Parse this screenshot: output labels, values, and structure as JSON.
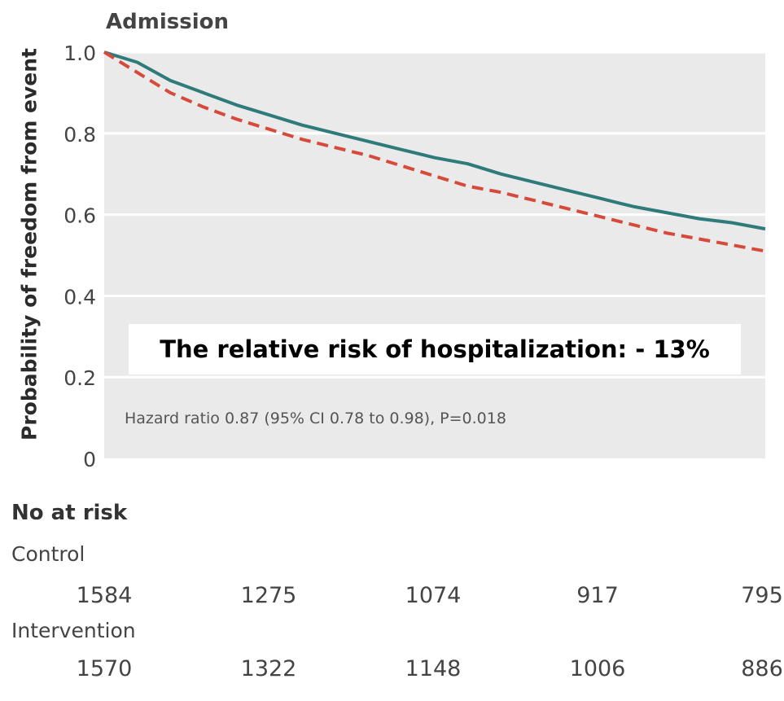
{
  "panel_title": "Admission",
  "annotation": "The relative risk of hospitalization: - 13%",
  "hazard_text": "Hazard ratio 0.87 (95% CI 0.78 to 0.98), P=0.018",
  "at_risk": {
    "header": "No at risk",
    "groups": [
      {
        "label": "Control",
        "counts": [
          "1584",
          "1275",
          "1074",
          "917",
          "795"
        ]
      },
      {
        "label": "Intervention",
        "counts": [
          "1570",
          "1322",
          "1148",
          "1006",
          "886"
        ]
      }
    ]
  },
  "colors": {
    "panel_bg": "#eaeaea",
    "gridline": "#ffffff",
    "solid_series": "#2f7a7a",
    "dashed_series": "#d64a3a"
  },
  "chart_data": {
    "type": "line",
    "title": "Admission",
    "ylabel": "Probability of freedom from event",
    "xlabel": "",
    "ylim": [
      0,
      1.0
    ],
    "yticks": [
      0,
      0.2,
      0.4,
      0.6,
      0.8,
      1.0
    ],
    "ytick_labels": [
      "0",
      "0.2",
      "0.4",
      "0.6",
      "0.8",
      "1.0"
    ],
    "x_unit_note": "follow-up period, 0 to end",
    "xlim": [
      0,
      1
    ],
    "grid": true,
    "series": [
      {
        "style": "solid",
        "color": "#2f7a7a",
        "x": [
          0,
          0.02,
          0.05,
          0.1,
          0.15,
          0.2,
          0.25,
          0.3,
          0.35,
          0.4,
          0.45,
          0.5,
          0.55,
          0.6,
          0.65,
          0.7,
          0.75,
          0.8,
          0.85,
          0.9,
          0.95,
          1.0
        ],
        "y": [
          1.0,
          0.99,
          0.975,
          0.93,
          0.9,
          0.87,
          0.845,
          0.82,
          0.8,
          0.78,
          0.76,
          0.74,
          0.725,
          0.7,
          0.68,
          0.66,
          0.64,
          0.62,
          0.605,
          0.59,
          0.58,
          0.565
        ]
      },
      {
        "style": "dashed",
        "color": "#d64a3a",
        "x": [
          0,
          0.02,
          0.05,
          0.1,
          0.15,
          0.2,
          0.25,
          0.3,
          0.35,
          0.4,
          0.45,
          0.5,
          0.55,
          0.6,
          0.65,
          0.7,
          0.75,
          0.8,
          0.85,
          0.9,
          0.95,
          1.0
        ],
        "y": [
          1.0,
          0.98,
          0.95,
          0.9,
          0.865,
          0.835,
          0.81,
          0.785,
          0.765,
          0.745,
          0.72,
          0.695,
          0.67,
          0.655,
          0.635,
          0.615,
          0.595,
          0.575,
          0.555,
          0.54,
          0.525,
          0.51
        ]
      }
    ]
  }
}
